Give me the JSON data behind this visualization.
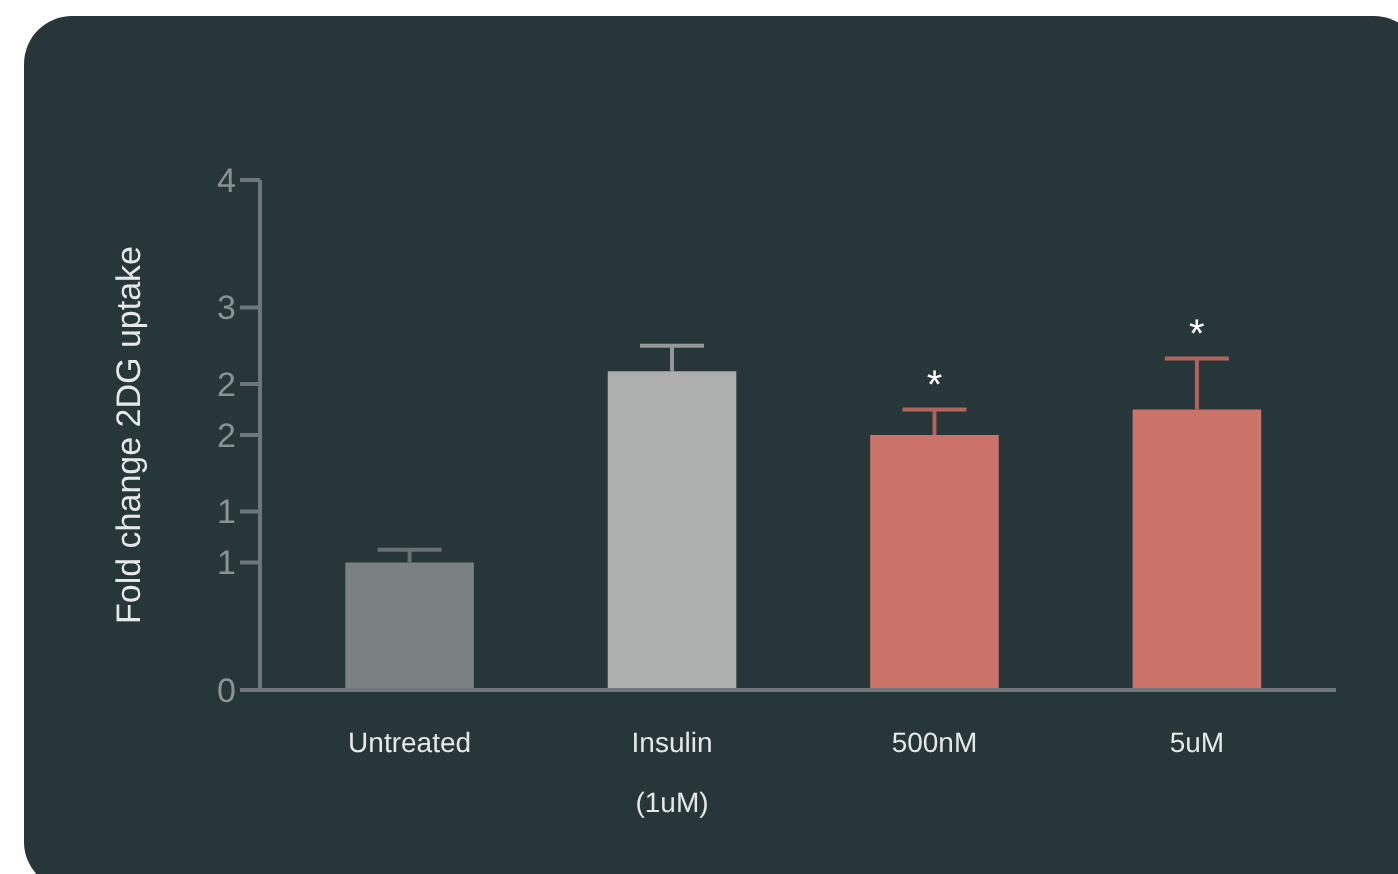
{
  "chart_data": {
    "type": "bar",
    "ylabel": "Fold change 2DG uptake",
    "categories": [
      "Untreated",
      "Insulin (1uM)",
      "500nM",
      "5uM"
    ],
    "values": [
      1.0,
      2.5,
      2.0,
      2.2
    ],
    "colors": [
      "#7b8083",
      "#adafae",
      "#cc7369",
      "#cc7369"
    ],
    "errors": [
      0.1,
      0.2,
      0.2,
      0.4
    ],
    "ylim": [
      0,
      4
    ],
    "yticks": [
      0,
      1,
      {
        "value": 1.4,
        "label": "1"
      },
      2,
      {
        "value": 2.4,
        "label": "2"
      },
      3,
      4
    ],
    "annotations": [
      {
        "text": "*",
        "x": "500nM",
        "y": 2.2
      },
      {
        "text": "*",
        "x": "5uM",
        "y": 2.6
      }
    ],
    "grid": false
  }
}
